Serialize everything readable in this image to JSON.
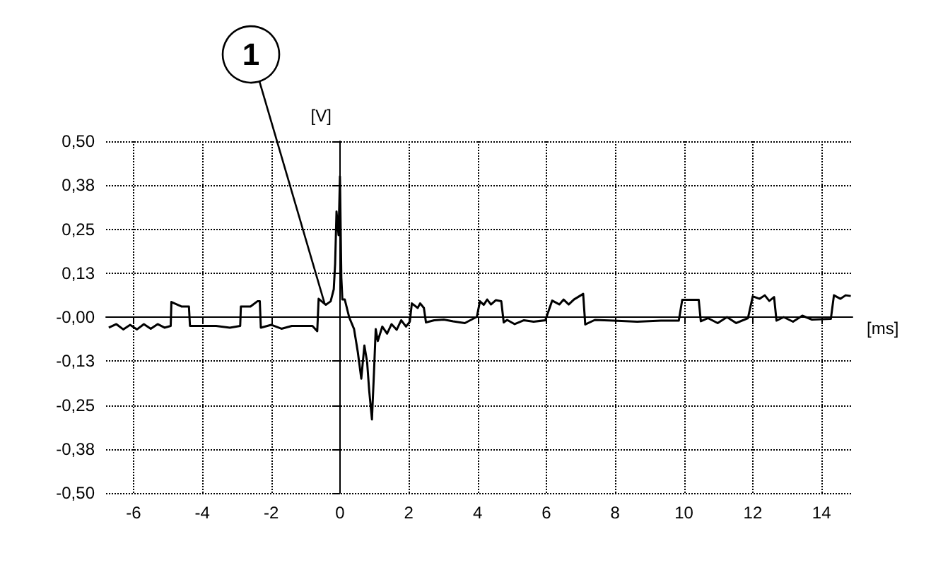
{
  "chart_data": {
    "type": "line",
    "xlabel": "[ms]",
    "ylabel": "[V]",
    "xlim": [
      -6.8,
      14.9
    ],
    "xticks": [
      -6,
      -4,
      -2,
      0,
      2,
      4,
      6,
      8,
      10,
      12,
      14
    ],
    "ylim": [
      -0.5,
      0.5
    ],
    "yticks": [
      {
        "value": -0.5,
        "label": "-0,50"
      },
      {
        "value": -0.375,
        "label": "-0,38"
      },
      {
        "value": -0.25,
        "label": "-0,25"
      },
      {
        "value": -0.125,
        "label": "-0,13"
      },
      {
        "value": 0,
        "label": "-0,00"
      },
      {
        "value": 0.125,
        "label": "0,13"
      },
      {
        "value": 0.25,
        "label": "0,25"
      },
      {
        "value": 0.375,
        "label": "0,38"
      },
      {
        "value": 0.5,
        "label": "0,50"
      }
    ],
    "grid": true,
    "marker": "none",
    "line_style": "solid",
    "annotations": [
      {
        "text": "1",
        "x": -0.45,
        "y": 0.04
      }
    ],
    "series": [
      {
        "color": "#000000",
        "x": [
          -6.72,
          -6.5,
          -6.3,
          -6.1,
          -5.9,
          -5.7,
          -5.5,
          -5.3,
          -5.1,
          -4.92,
          -4.9,
          -4.6,
          -4.39,
          -4.36,
          -4.0,
          -3.6,
          -3.2,
          -2.9,
          -2.88,
          -2.6,
          -2.4,
          -2.33,
          -2.3,
          -2.0,
          -1.7,
          -1.4,
          -1.1,
          -0.8,
          -0.66,
          -0.62,
          -0.41,
          -0.27,
          -0.18,
          -0.14,
          -0.1,
          -0.04,
          0.0,
          0.04,
          0.07,
          0.14,
          0.27,
          0.41,
          0.52,
          0.62,
          0.71,
          0.79,
          0.85,
          0.93,
          0.99,
          1.04,
          1.1,
          1.23,
          1.37,
          1.5,
          1.65,
          1.78,
          1.92,
          2.03,
          2.09,
          2.26,
          2.33,
          2.44,
          2.5,
          2.74,
          3.02,
          3.29,
          3.63,
          3.98,
          4.07,
          4.18,
          4.28,
          4.39,
          4.53,
          4.69,
          4.76,
          4.86,
          5.08,
          5.35,
          5.63,
          5.97,
          6.17,
          6.38,
          6.5,
          6.65,
          6.8,
          7.07,
          7.13,
          7.41,
          7.96,
          8.64,
          9.33,
          9.85,
          9.95,
          10.43,
          10.49,
          10.7,
          10.98,
          11.25,
          11.52,
          11.86,
          12.0,
          12.2,
          12.35,
          12.48,
          12.62,
          12.69,
          12.9,
          13.17,
          13.44,
          13.72,
          14.27,
          14.36,
          14.55,
          14.7,
          14.85
        ],
        "values": [
          -0.03,
          -0.02,
          -0.035,
          -0.022,
          -0.035,
          -0.02,
          -0.033,
          -0.02,
          -0.03,
          -0.025,
          0.043,
          0.03,
          0.03,
          -0.025,
          -0.025,
          -0.025,
          -0.03,
          -0.025,
          0.03,
          0.03,
          0.045,
          0.045,
          -0.03,
          -0.022,
          -0.033,
          -0.025,
          -0.025,
          -0.025,
          -0.04,
          0.052,
          0.035,
          0.045,
          0.079,
          0.152,
          0.3,
          0.233,
          0.4,
          0.112,
          0.05,
          0.05,
          -0.001,
          -0.034,
          -0.1,
          -0.175,
          -0.081,
          -0.128,
          -0.209,
          -0.291,
          -0.155,
          -0.034,
          -0.068,
          -0.027,
          -0.047,
          -0.02,
          -0.036,
          -0.009,
          -0.027,
          -0.013,
          0.039,
          0.026,
          0.039,
          0.026,
          -0.015,
          -0.009,
          -0.007,
          -0.012,
          -0.017,
          0.001,
          0.045,
          0.035,
          0.05,
          0.036,
          0.048,
          0.045,
          -0.015,
          -0.008,
          -0.02,
          -0.009,
          -0.013,
          -0.009,
          0.047,
          0.036,
          0.05,
          0.036,
          0.05,
          0.066,
          -0.021,
          -0.008,
          -0.01,
          -0.013,
          -0.01,
          -0.01,
          0.049,
          0.049,
          -0.012,
          -0.003,
          -0.017,
          0.0,
          -0.017,
          -0.003,
          0.059,
          0.052,
          0.062,
          0.046,
          0.057,
          -0.01,
          0.0,
          -0.013,
          0.004,
          -0.007,
          -0.005,
          0.062,
          0.052,
          0.062,
          0.06
        ]
      }
    ]
  }
}
